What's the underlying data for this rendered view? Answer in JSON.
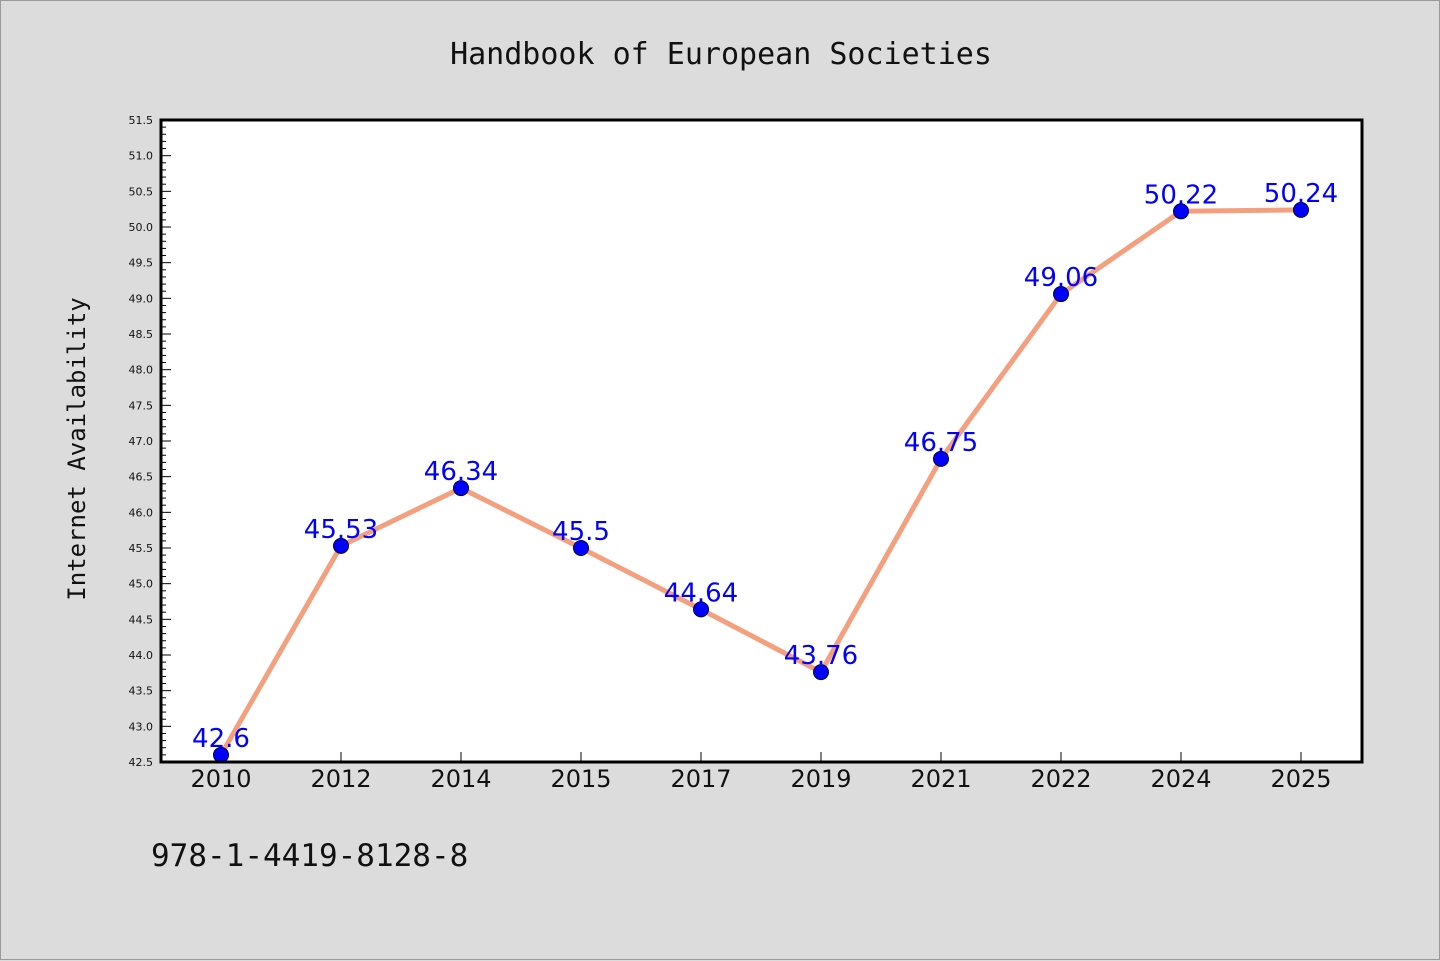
{
  "chart_data": {
    "type": "line",
    "title": "Handbook of European Societies",
    "xlabel": "",
    "ylabel": "Internet Availability",
    "categories": [
      "2010",
      "2012",
      "2014",
      "2015",
      "2017",
      "2019",
      "2021",
      "2022",
      "2024",
      "2025"
    ],
    "series": [
      {
        "values": [
          42.6,
          45.53,
          46.34,
          45.5,
          44.64,
          43.76,
          46.75,
          49.06,
          50.22,
          50.24
        ]
      }
    ],
    "data_labels": [
      "42.6",
      "45.53",
      "46.34",
      "45.5",
      "44.64",
      "43.76",
      "46.75",
      "49.06",
      "50.22",
      "50.24"
    ],
    "ylim": [
      42.5,
      51.5
    ],
    "ytick_step": 0.5,
    "ytick_labels": [
      "42.5",
      "43.0",
      "43.5",
      "44.0",
      "44.5",
      "45.0",
      "45.5",
      "46.0",
      "46.5",
      "47.0",
      "47.5",
      "48.0",
      "48.5",
      "49.0",
      "49.5",
      "50.0",
      "50.5",
      "51.0",
      "51.5"
    ],
    "grid": false,
    "legend": "none",
    "colors": {
      "line": "#f4a07e",
      "marker": "#0000ff",
      "label": "#0000ff",
      "background": "#dcdcdc",
      "plot_background": "#ffffff"
    }
  },
  "footer_text": "978-1-4419-8128-8"
}
